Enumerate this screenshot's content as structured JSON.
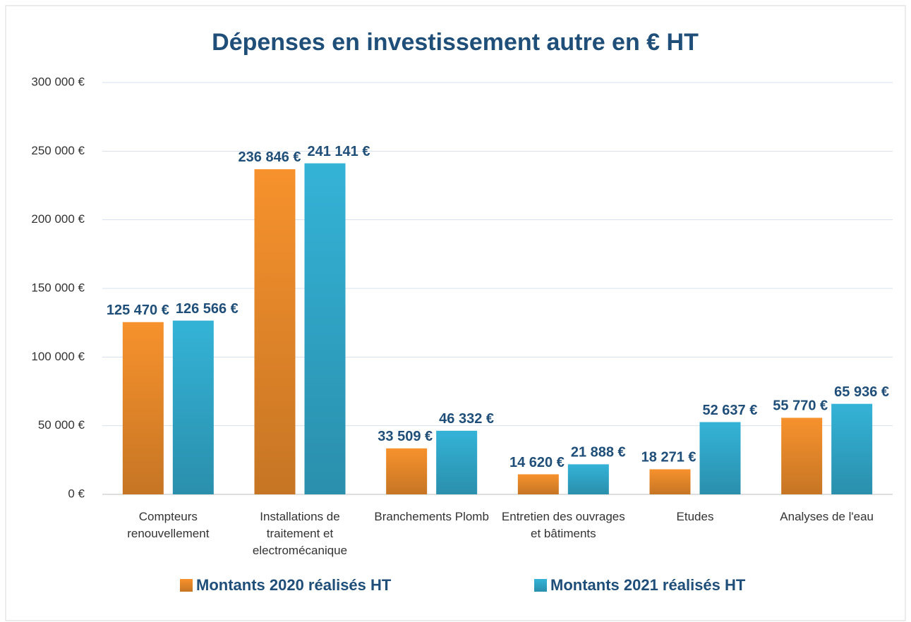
{
  "chart_data": {
    "type": "bar",
    "title": "Dépenses en investissement autre en € HT",
    "categories": [
      "Compteurs renouvellement",
      "Installations de traitement et electromécanique",
      "Branchements Plomb",
      "Entretien des ouvrages et bâtiments",
      "Etudes",
      "Analyses de l'eau"
    ],
    "series": [
      {
        "name": "Montants 2020 réalisés HT",
        "color": "#f7922d",
        "values": [
          125470,
          236846,
          33509,
          14620,
          18271,
          55770
        ],
        "value_labels": [
          "125 470 €",
          "236 846 €",
          "33 509 €",
          "14 620 €",
          "18 271 €",
          "55 770 €"
        ]
      },
      {
        "name": "Montants 2021 réalisés HT",
        "color": "#34b3d7",
        "values": [
          126566,
          241141,
          46332,
          21888,
          52637,
          65936
        ],
        "value_labels": [
          "126 566 €",
          "241 141 €",
          "46 332 €",
          "21 888 €",
          "52 637 €",
          "65 936 €"
        ]
      }
    ],
    "ylim": [
      0,
      300000
    ],
    "yticks": [
      {
        "value": 0,
        "label": "0 €"
      },
      {
        "value": 50000,
        "label": "50 000 €"
      },
      {
        "value": 100000,
        "label": "100 000 €"
      },
      {
        "value": 150000,
        "label": "150 000 €"
      },
      {
        "value": 200000,
        "label": "200 000 €"
      },
      {
        "value": 250000,
        "label": "250 000 €"
      },
      {
        "value": 300000,
        "label": "300 000 €"
      }
    ],
    "grid": true,
    "legend": "bottom"
  }
}
